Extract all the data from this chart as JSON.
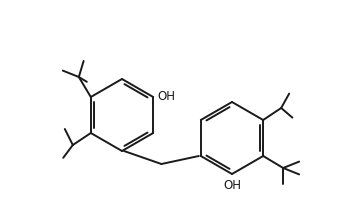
{
  "bg_color": "#ffffff",
  "line_color": "#1a1a1a",
  "line_width": 1.4,
  "text_color": "#1a1a1a",
  "font_size": 8.5,
  "figsize": [
    3.54,
    2.12
  ],
  "dpi": 100
}
